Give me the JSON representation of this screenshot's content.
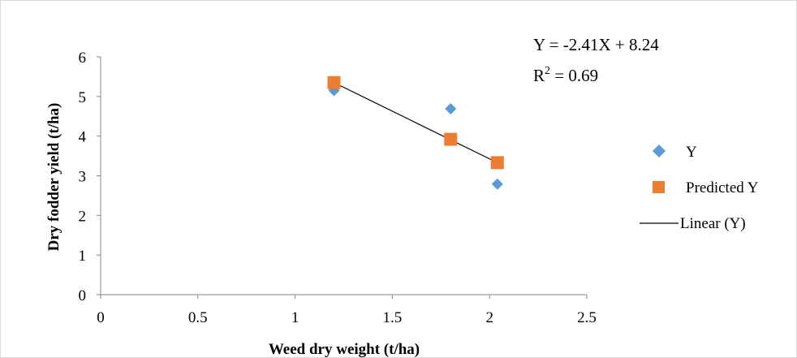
{
  "chart_data": {
    "type": "scatter",
    "xlabel": "Weed dry weight (t/ha)",
    "ylabel": "Dry fodder yield (t/ha)",
    "xlim": [
      0,
      2.5
    ],
    "ylim": [
      0,
      6
    ],
    "x_ticks": [
      "0",
      "0.5",
      "1",
      "1.5",
      "2",
      "2.5"
    ],
    "y_ticks": [
      "0",
      "1",
      "2",
      "3",
      "4",
      "5",
      "6"
    ],
    "grid": false,
    "legend_position": "right",
    "series": [
      {
        "name": "Y",
        "marker": "diamond",
        "color": "#5B9BD5",
        "x": [
          1.2,
          1.8,
          2.04
        ],
        "y": [
          5.15,
          4.69,
          2.79
        ]
      },
      {
        "name": "Predicted Y",
        "marker": "square",
        "color": "#ED7D31",
        "x": [
          1.2,
          1.8,
          2.04
        ],
        "y": [
          5.35,
          3.92,
          3.33
        ]
      }
    ],
    "trendline": {
      "name": "Linear (Y)",
      "color": "#000000",
      "x": [
        1.2,
        2.04
      ],
      "y": [
        5.35,
        3.33
      ]
    },
    "annotations": {
      "equation": "Y = -2.41X + 8.24",
      "r2_prefix": "R",
      "r2_sup": "2",
      "r2_suffix": " = 0.69"
    }
  }
}
